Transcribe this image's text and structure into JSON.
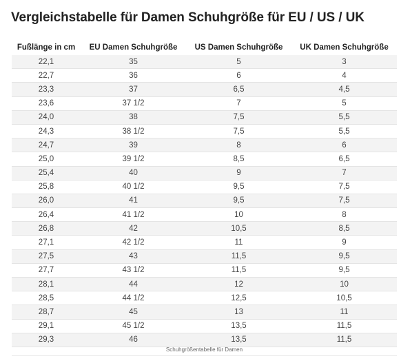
{
  "title": "Vergleichstabelle für Damen Schuhgröße für EU / US / UK",
  "table": {
    "headers": [
      "Fußlänge in cm",
      "EU Damen Schuhgröße",
      "US Damen Schuhgröße",
      "UK Damen Schuhgröße"
    ],
    "rows": [
      [
        "22,1",
        "35",
        "5",
        "3"
      ],
      [
        "22,7",
        "36",
        "6",
        "4"
      ],
      [
        "23,3",
        "37",
        "6,5",
        "4,5"
      ],
      [
        "23,6",
        "37 1/2",
        "7",
        "5"
      ],
      [
        "24,0",
        "38",
        "7,5",
        "5,5"
      ],
      [
        "24,3",
        "38 1/2",
        "7,5",
        "5,5"
      ],
      [
        "24,7",
        "39",
        "8",
        "6"
      ],
      [
        "25,0",
        "39 1/2",
        "8,5",
        "6,5"
      ],
      [
        "25,4",
        "40",
        "9",
        "7"
      ],
      [
        "25,8",
        "40 1/2",
        "9,5",
        "7,5"
      ],
      [
        "26,0",
        "41",
        "9,5",
        "7,5"
      ],
      [
        "26,4",
        "41 1/2",
        "10",
        "8"
      ],
      [
        "26,8",
        "42",
        "10,5",
        "8,5"
      ],
      [
        "27,1",
        "42 1/2",
        "11",
        "9"
      ],
      [
        "27,5",
        "43",
        "11,5",
        "9,5"
      ],
      [
        "27,7",
        "43 1/2",
        "11,5",
        "9,5"
      ],
      [
        "28,1",
        "44",
        "12",
        "10"
      ],
      [
        "28,5",
        "44 1/2",
        "12,5",
        "10,5"
      ],
      [
        "28,7",
        "45",
        "13",
        "11"
      ],
      [
        "29,1",
        "45 1/2",
        "13,5",
        "11,5"
      ],
      [
        "29,3",
        "46",
        "13,5",
        "11,5"
      ]
    ]
  },
  "caption": "Schuhgrößentabelle für Damen"
}
